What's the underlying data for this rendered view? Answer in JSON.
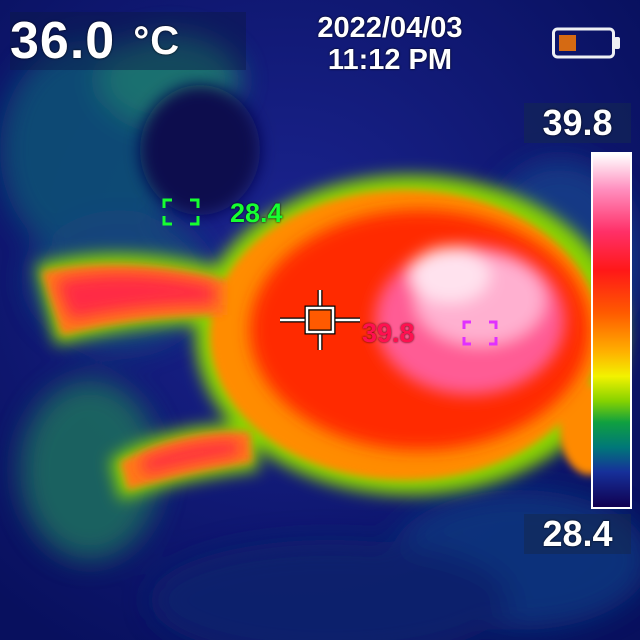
{
  "status": {
    "center_temperature": "36.0",
    "temperature_unit": "°C",
    "date": "2022/04/03",
    "time": "11:12 PM",
    "battery_icon": "battery-low-icon"
  },
  "scale": {
    "max": "39.8",
    "min": "28.4"
  },
  "spots": {
    "cold_value": "28.4",
    "hot_value": "39.8",
    "center_crosshair_icon": "crosshair-icon"
  },
  "colors": {
    "background_cold": "#0a0f6a",
    "hot": "#ff2a00",
    "hottest": "#ffffff",
    "cold_marker": "#16ff30",
    "hot_marker": "#e030ff",
    "battery_fill": "#d56a13"
  }
}
